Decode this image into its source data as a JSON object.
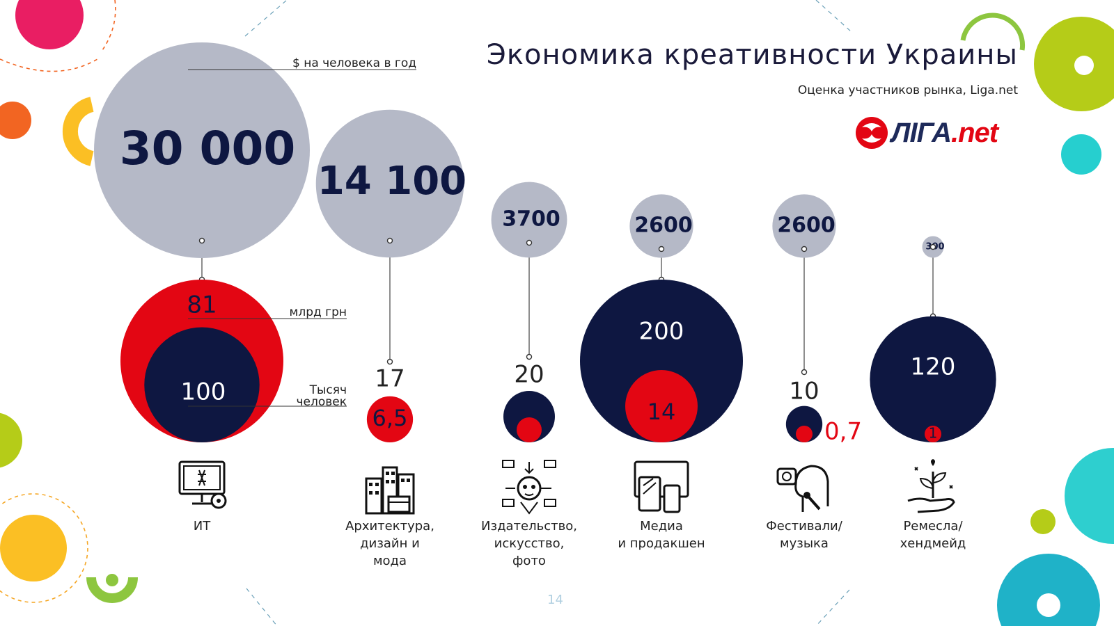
{
  "header": {
    "title": "Экономика креативности Украины",
    "subtitle": "Оценка участников рынка, Liga.net",
    "logo_text_main": "ЛІГА",
    "logo_text_dot": ".",
    "logo_text_net": "net"
  },
  "page_number": "14",
  "colors": {
    "gray_circle": "#b5b9c7",
    "red": "#e30613",
    "navy": "#0e1741",
    "text_dark": "#1a1a3a"
  },
  "chart_data": {
    "type": "bubble",
    "title": "Экономика креативности Украины",
    "subtitle": "Оценка участников рынка, Liga.net",
    "legend_labels": {
      "per_person": "$ на человека в год",
      "revenue": "млрд грн",
      "employees": "Тысяч\nчеловек"
    },
    "categories": [
      "ИТ",
      "Архитектура,\nдизайн и\nмода",
      "Издательство,\nискусство,\nфото",
      "Медиа\nи продакшен",
      "Фестивали/\nмузыка",
      "Ремесла/\nхендмейд"
    ],
    "series": [
      {
        "name": "$ на человека в год",
        "values": [
          30000,
          14100,
          3700,
          2600,
          2600,
          300
        ],
        "labels": [
          "30 000",
          "14 100",
          "3700",
          "2600",
          "2600",
          "300"
        ]
      },
      {
        "name": "млрд грн",
        "values": [
          81,
          6.5,
          1,
          14,
          0.7,
          1
        ],
        "labels": [
          "81",
          "6,5",
          "",
          "14",
          "0,7",
          "1"
        ]
      },
      {
        "name": "Тысяч человек",
        "values": [
          100,
          17,
          20,
          200,
          10,
          120
        ],
        "labels": [
          "100",
          "17",
          "20",
          "200",
          "10",
          "120"
        ]
      }
    ]
  },
  "icons": [
    "computer-gear-icon",
    "city-buildings-icon",
    "creative-mind-icon",
    "devices-icon",
    "singer-icon",
    "plant-hand-icon"
  ]
}
